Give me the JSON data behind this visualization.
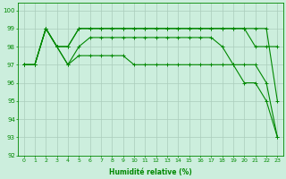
{
  "xlabel": "Humidité relative (%)",
  "bg_color": "#cceedd",
  "grid_color": "#aaccbb",
  "line_color": "#008800",
  "xlim_min": -0.5,
  "xlim_max": 23.5,
  "ylim_min": 92,
  "ylim_max": 100.4,
  "yticks": [
    92,
    93,
    94,
    95,
    96,
    97,
    98,
    99,
    100
  ],
  "xticks": [
    0,
    1,
    2,
    3,
    4,
    5,
    6,
    7,
    8,
    9,
    10,
    11,
    12,
    13,
    14,
    15,
    16,
    17,
    18,
    19,
    20,
    21,
    22,
    23
  ],
  "lines": [
    [
      97,
      97,
      99,
      98,
      98,
      99,
      99,
      99,
      99,
      99,
      99,
      99,
      99,
      99,
      99,
      99,
      99,
      99,
      99,
      99,
      99,
      99,
      99,
      95
    ],
    [
      97,
      97,
      99,
      98,
      98,
      99,
      99,
      99,
      99,
      99,
      99,
      99,
      99,
      99,
      99,
      99,
      99,
      99,
      99,
      99,
      99,
      98,
      98,
      98
    ],
    [
      97,
      97,
      99,
      98,
      97,
      98,
      98.5,
      98.5,
      98.5,
      98.5,
      98.5,
      98.5,
      98.5,
      98.5,
      98.5,
      98.5,
      98.5,
      98.5,
      98,
      97,
      96,
      96,
      95,
      93
    ],
    [
      97,
      97,
      99,
      98,
      97,
      97.5,
      97.5,
      97.5,
      97.5,
      97.5,
      97,
      97,
      97,
      97,
      97,
      97,
      97,
      97,
      97,
      97,
      97,
      97,
      96,
      93
    ]
  ]
}
